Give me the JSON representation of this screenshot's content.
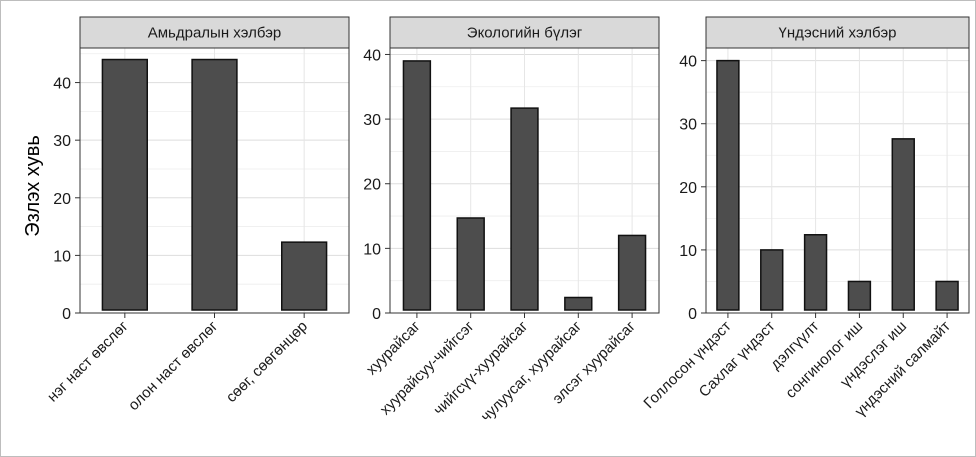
{
  "chart_data": {
    "type": "bar",
    "ylabel": "Эзлэх хувь",
    "bar_color": "#4d4d4d",
    "strip_color": "#d9d9d9",
    "grid": true,
    "facets": [
      {
        "title": "Амьдралын хэлбэр",
        "categories": [
          "нэг наст өвслөг",
          "олон наст өвслөг",
          "сөөг, сөөгөнцөр"
        ],
        "values": [
          44,
          44,
          12.3
        ],
        "ylim": [
          0,
          46
        ],
        "yticks": [
          0,
          10,
          20,
          30,
          40
        ]
      },
      {
        "title": "Экологийн бүлэг",
        "categories": [
          "хуурайсаг",
          "хуурайсуу-чийгсэг",
          "чийгсүү-хуурайсаг",
          "чулуусаг, хуурайсаг",
          "элсэг хуурайсаг"
        ],
        "values": [
          39,
          14.7,
          31.7,
          2.4,
          12
        ],
        "ylim": [
          0,
          41
        ],
        "yticks": [
          0,
          10,
          20,
          30,
          40
        ]
      },
      {
        "title": "Үндэсний хэлбэр",
        "categories": [
          "Голлосон үндэст",
          "Сахлаг үндэст",
          "дэлгүүлт",
          "сонгинолог иш",
          "үндэслэг иш",
          "үндэсний салмайт"
        ],
        "values": [
          40,
          10,
          12.4,
          5,
          27.6,
          5
        ],
        "ylim": [
          0,
          42
        ],
        "yticks": [
          0,
          10,
          20,
          30,
          40
        ]
      }
    ]
  }
}
